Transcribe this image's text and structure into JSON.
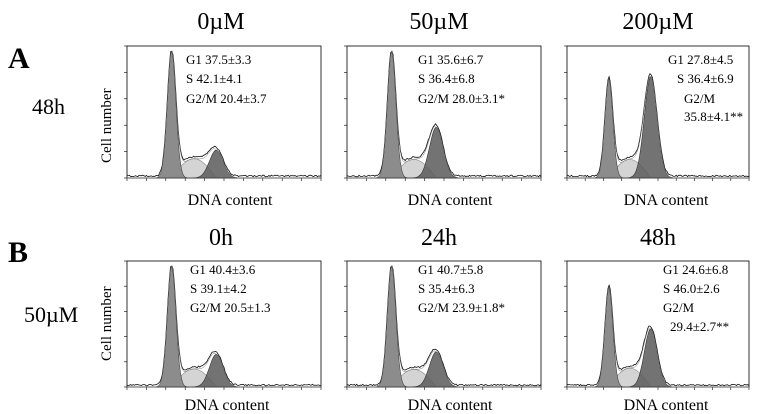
{
  "panels": [
    {
      "letter": "A",
      "row_label": "48h",
      "ylabel": "Cell number",
      "charts": [
        {
          "title": "0µM",
          "stats": [
            "G1  37.5±3.3",
            "S  42.1±4.1",
            "G2/M  20.4±3.7"
          ],
          "xlabel": "DNA content"
        },
        {
          "title": "50µM",
          "stats": [
            "G1  35.6±6.7",
            "S  36.4±6.8",
            "G2/M  28.0±3.1*"
          ],
          "xlabel": "DNA content"
        },
        {
          "title": "200µM",
          "stats": [
            "G1 27.8±4.5",
            "S  36.4±6.9",
            "G2/M",
            "35.8±4.1**"
          ],
          "xlabel": "DNA content"
        }
      ]
    },
    {
      "letter": "B",
      "row_label": "50µM",
      "ylabel": "Cell number",
      "charts": [
        {
          "title": "0h",
          "stats": [
            "G1  40.4±3.6",
            "S  39.1±4.2",
            "G2/M  20.5±1.3"
          ],
          "xlabel": "DNA content"
        },
        {
          "title": "24h",
          "stats": [
            "G1  40.7±5.8",
            "S  35.4±6.3",
            "G2/M  23.9±1.8*"
          ],
          "xlabel": "DNA content"
        },
        {
          "title": "48h",
          "stats": [
            "G1  24.6±6.8",
            "S  46.0±2.6",
            "G2/M",
            "29.4±2.7**"
          ],
          "xlabel": "DNA content"
        }
      ]
    }
  ],
  "chart_data": [
    {
      "type": "area",
      "panel": "A",
      "condition": "0µM",
      "G1": 37.5,
      "S": 42.1,
      "G2M": 20.4,
      "g1_peak": 1.0,
      "g2_peak": 0.22
    },
    {
      "type": "area",
      "panel": "A",
      "condition": "50µM",
      "G1": 35.6,
      "S": 36.4,
      "G2M": 28.0,
      "g1_peak": 1.0,
      "g2_peak": 0.4
    },
    {
      "type": "area",
      "panel": "A",
      "condition": "200µM",
      "G1": 27.8,
      "S": 36.4,
      "G2M": 35.8,
      "g1_peak": 0.78,
      "g2_peak": 0.8
    },
    {
      "type": "area",
      "panel": "B",
      "condition": "0h",
      "G1": 40.4,
      "S": 39.1,
      "G2M": 20.5,
      "g1_peak": 1.0,
      "g2_peak": 0.27
    },
    {
      "type": "area",
      "panel": "B",
      "condition": "24h",
      "G1": 40.7,
      "S": 35.4,
      "G2M": 23.9,
      "g1_peak": 1.0,
      "g2_peak": 0.29
    },
    {
      "type": "area",
      "panel": "B",
      "condition": "48h",
      "G1": 24.6,
      "S": 46.0,
      "G2M": 29.4,
      "g1_peak": 0.82,
      "g2_peak": 0.48
    }
  ],
  "colors": {
    "g1_fill": "#8c8c8c",
    "s_fill": "#d4d4d4",
    "g2_fill": "#5a5a5a",
    "axis": "#000000"
  }
}
